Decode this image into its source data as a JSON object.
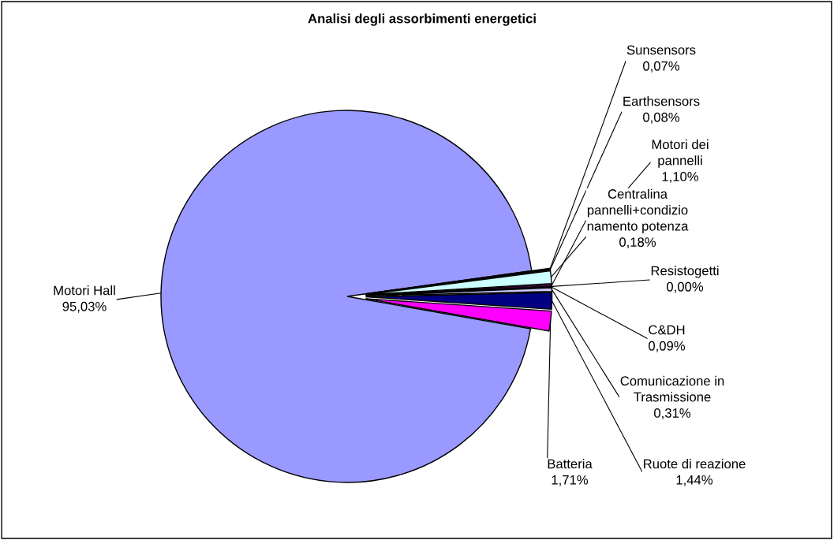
{
  "chart_data": {
    "type": "pie",
    "title": "Analisi degli assorbimenti energetici",
    "categories": [
      "Motori Hall",
      "Sunsensors",
      "Earthsensors",
      "Motori dei pannelli",
      "Centralina pannelli+condizionamento potenza",
      "Resistogetti",
      "C&DH",
      "Comunicazione in Trasmissione",
      "Ruote di reazione",
      "Batteria"
    ],
    "values": [
      95.03,
      0.07,
      0.08,
      1.1,
      0.18,
      0.0,
      0.09,
      0.31,
      1.44,
      1.71
    ],
    "value_labels": [
      "95,03%",
      "0,07%",
      "0,08%",
      "1,10%",
      "0,18%",
      "0,00%",
      "0,09%",
      "0,31%",
      "1,44%",
      "1,71%"
    ],
    "colors": [
      "#9999ff",
      "#993366",
      "#ffffcc",
      "#ccffff",
      "#660066",
      "#ff8080",
      "#0066cc",
      "#ccccff",
      "#000080",
      "#ff00ff"
    ]
  }
}
